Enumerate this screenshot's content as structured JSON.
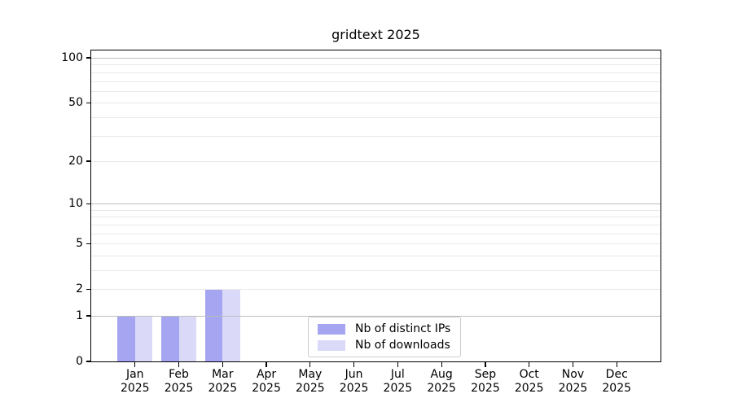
{
  "chart_data": {
    "type": "bar",
    "title": "gridtext 2025",
    "x": {
      "categories": [
        "Jan",
        "Feb",
        "Mar",
        "Apr",
        "May",
        "Jun",
        "Jul",
        "Aug",
        "Sep",
        "Oct",
        "Nov",
        "Dec"
      ],
      "year_label": "2025"
    },
    "series": [
      {
        "name": "Nb of distinct IPs",
        "color": "#a5a5f1",
        "values": [
          1,
          1,
          2,
          0,
          0,
          0,
          0,
          0,
          0,
          0,
          0,
          0
        ]
      },
      {
        "name": "Nb of downloads",
        "color": "#dadaf8",
        "values": [
          1,
          1,
          2,
          0,
          0,
          0,
          0,
          0,
          0,
          0,
          0,
          0
        ]
      }
    ],
    "y_axis": {
      "scale": "log10(1+x)",
      "ticks": [
        0,
        1,
        2,
        5,
        10,
        20,
        50,
        100
      ],
      "major_gridlines": [
        1,
        10,
        100
      ],
      "minor_gridlines": [
        2,
        3,
        4,
        5,
        6,
        7,
        8,
        9,
        20,
        30,
        40,
        50,
        60,
        70,
        80,
        90
      ],
      "ylim": [
        0,
        112
      ]
    },
    "legend": {
      "position": "lower-center"
    },
    "grid": "horizontal",
    "colors": {
      "major_grid": "#bdbdbd",
      "minor_grid": "#e9e9e9",
      "axis": "#000000",
      "legend_border": "#cccccc",
      "background": "#ffffff"
    }
  }
}
